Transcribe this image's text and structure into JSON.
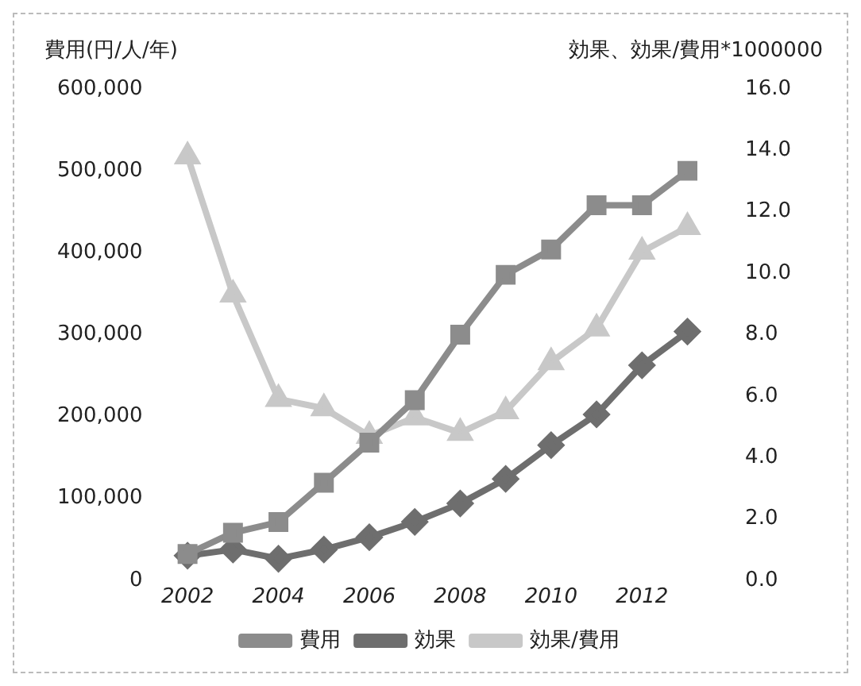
{
  "chart_data": {
    "type": "line",
    "ylabel": "費用(円/人/年)",
    "y2label": "効果、効果/費用*1000000",
    "categories": [
      "2002",
      null,
      "2004",
      null,
      "2006",
      null,
      "2008",
      null,
      "2010",
      null,
      "2012",
      null
    ],
    "series": [
      {
        "name": "費用",
        "color": "#8c8c8c",
        "marker": "square",
        "values": [
          32000,
          58000,
          71000,
          119000,
          168000,
          220000,
          300000,
          373000,
          404000,
          458000,
          458000,
          500000
        ]
      },
      {
        "name": "効果",
        "color": "#6e6e6e",
        "marker": "diamond",
        "axis": "y2",
        "values": [
          0.8,
          1.0,
          0.7,
          1.0,
          1.4,
          1.9,
          2.5,
          3.3,
          4.4,
          5.4,
          7.0,
          8.1
        ]
      },
      {
        "name": "効果/費用",
        "color": "#c8c8c8",
        "marker": "triangle",
        "axis": "y2",
        "values": [
          13.8,
          9.3,
          5.9,
          5.6,
          4.7,
          5.3,
          4.8,
          5.5,
          7.1,
          8.2,
          10.7,
          11.5
        ]
      }
    ],
    "ylim": [
      0,
      600000
    ],
    "yticks": [
      {
        "value": 0,
        "label": "0"
      },
      {
        "value": 100000,
        "label": "100,000"
      },
      {
        "value": 200000,
        "label": "200,000"
      },
      {
        "value": 300000,
        "label": "300,000"
      },
      {
        "value": 400000,
        "label": "400,000"
      },
      {
        "value": 500000,
        "label": "500,000"
      },
      {
        "value": 600000,
        "label": "600,000"
      }
    ],
    "y2lim": [
      0,
      16
    ],
    "y2ticks": [
      {
        "value": 0,
        "label": "0.0"
      },
      {
        "value": 2,
        "label": "2.0"
      },
      {
        "value": 4,
        "label": "4.0"
      },
      {
        "value": 6,
        "label": "6.0"
      },
      {
        "value": 8,
        "label": "8.0"
      },
      {
        "value": 10,
        "label": "10.0"
      },
      {
        "value": 12,
        "label": "12.0"
      },
      {
        "value": 14,
        "label": "14.0"
      },
      {
        "value": 16,
        "label": "16.0"
      }
    ],
    "grid": false,
    "legend": "bottom"
  }
}
